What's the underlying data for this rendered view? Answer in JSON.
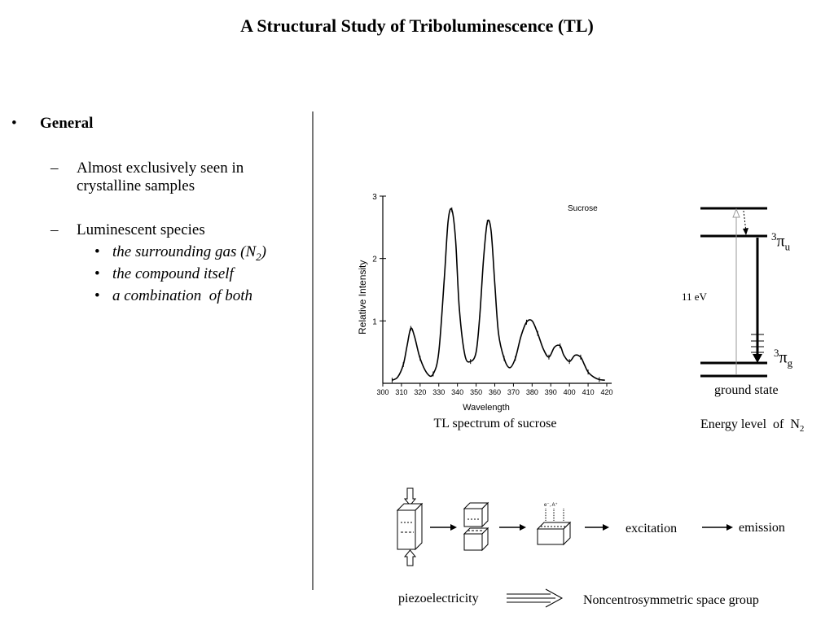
{
  "title": "A Structural Study of Triboluminescence (TL)",
  "bullets": {
    "heading": "General",
    "items": [
      {
        "marker": "–",
        "text": "Almost exclusively seen in crystalline samples"
      },
      {
        "marker": "–",
        "text": "Luminescent species"
      }
    ],
    "subitems": [
      {
        "marker": "•",
        "text": "the surrounding gas (N",
        "sub": "2",
        "suffix": ")"
      },
      {
        "marker": "•",
        "text": "the compound itself"
      },
      {
        "marker": "•",
        "text": "a combination  of both"
      }
    ],
    "top_marker": "•"
  },
  "spectrum": {
    "caption": "TL spectrum of sucrose",
    "label": "Sucrose",
    "ylabel": "Relative Intensity",
    "xlabel": "Wavelength",
    "yticks": [
      "1",
      "2",
      "3"
    ],
    "xticks": [
      "300",
      "310",
      "320",
      "330",
      "340",
      "350",
      "360",
      "370",
      "380",
      "390",
      "400",
      "410",
      "420"
    ]
  },
  "chart_data": {
    "type": "line",
    "title": "Sucrose",
    "xlabel": "Wavelength",
    "ylabel": "Relative Intensity",
    "xlim": [
      300,
      420
    ],
    "ylim": [
      0,
      3
    ],
    "series": [
      {
        "name": "Sucrose",
        "x": [
          305,
          308,
          311,
          313,
          315,
          317,
          320,
          324,
          327,
          330,
          333,
          335,
          337,
          339,
          341,
          344,
          347,
          350,
          352,
          354,
          356,
          358,
          360,
          362,
          365,
          368,
          371,
          374,
          377,
          380,
          383,
          386,
          389,
          392,
          395,
          397,
          400,
          403,
          406,
          408,
          410,
          413,
          416,
          419
        ],
        "y": [
          0.05,
          0.1,
          0.3,
          0.6,
          0.88,
          0.75,
          0.4,
          0.15,
          0.15,
          0.5,
          1.7,
          2.6,
          2.78,
          2.3,
          1.2,
          0.45,
          0.35,
          0.5,
          1.1,
          2.0,
          2.58,
          2.45,
          1.6,
          0.8,
          0.4,
          0.25,
          0.4,
          0.75,
          0.98,
          1.0,
          0.8,
          0.55,
          0.42,
          0.58,
          0.6,
          0.45,
          0.35,
          0.45,
          0.42,
          0.3,
          0.18,
          0.1,
          0.06,
          0.05
        ]
      }
    ]
  },
  "energy": {
    "caption": "Energy level  of  N",
    "caption_sub": "2",
    "upper_sup": "3",
    "upper_sym": "π",
    "upper_sub": "u",
    "lower_sup": "3",
    "lower_sym": "π",
    "lower_sub": "g",
    "gap_label": "11 eV",
    "ground_label": "ground state"
  },
  "process": {
    "excitation_label": "excitation",
    "emission_label": "emission",
    "particles_label": "e⁻, A⁺",
    "piezo_label": "piezoelectricity",
    "space_group_label": "Noncentrosymmetric space group"
  }
}
